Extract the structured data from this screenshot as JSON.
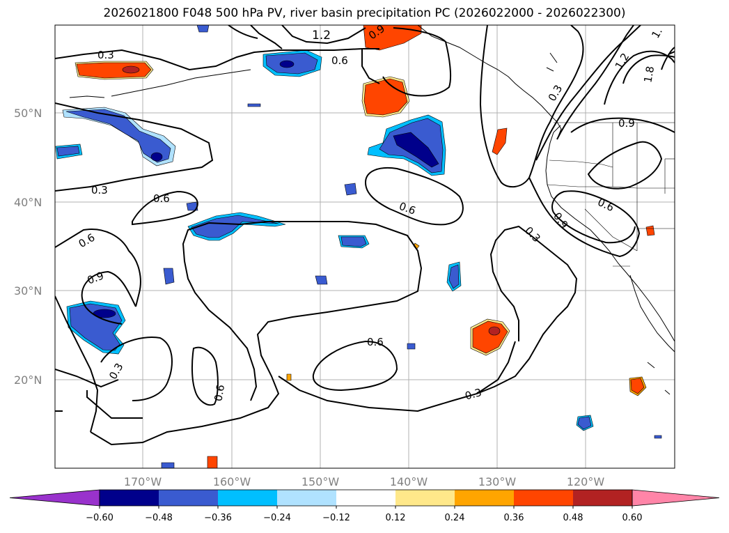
{
  "title": "2026021800 F048 500 hPa PV, river basin precipitation PC (2026022000 - 2026022300)",
  "lat_labels": [
    "50°N",
    "40°N",
    "30°N",
    "20°N"
  ],
  "lon_labels": [
    "170°W",
    "160°W",
    "150°W",
    "140°W",
    "130°W",
    "120°W"
  ],
  "contour_labels": [
    "0.3",
    "1.2",
    "0.9",
    "0.6",
    "0.3",
    "1.2",
    "1.8",
    "1.",
    "0.9",
    "0.3",
    "0.6",
    "0.6",
    "0.6",
    "0.9",
    "0.6",
    "0.3",
    "0.9",
    "0.3",
    "0.6",
    "0.6",
    "0.3"
  ],
  "colorbar": {
    "ticks": [
      "−0.60",
      "−0.48",
      "−0.36",
      "−0.24",
      "−0.12",
      "0.12",
      "0.24",
      "0.36",
      "0.48",
      "0.60"
    ],
    "colors": [
      "#9932cc",
      "#00008b",
      "#3a5bd0",
      "#00bfff",
      "#b0e2ff",
      "#ffffff",
      "#ffe88a",
      "#ffa500",
      "#ff4500",
      "#b22222",
      "#ff85a8"
    ]
  }
}
